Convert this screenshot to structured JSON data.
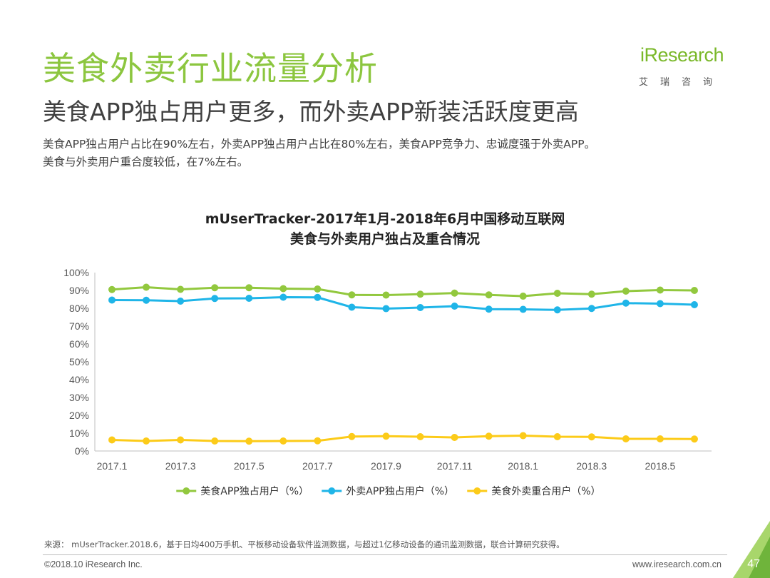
{
  "header": {
    "title": "美食外卖行业流量分析",
    "subtitle": "美食APP独占用户更多，而外卖APP新装活跃度更高",
    "description_lines": [
      "美食APP独占用户占比在90%左右，外卖APP独占用户占比在80%左右，美食APP竞争力、忠诚度强于外卖APP。",
      "美食与外卖用户重合度较低，在7%左右。"
    ]
  },
  "logo": {
    "text": "iResearch",
    "subtext": "艾瑞咨询"
  },
  "chart_data": {
    "type": "line",
    "title_lines": [
      "mUserTracker-2017年1月-2018年6月中国移动互联网",
      "美食与外卖用户独占及重合情况"
    ],
    "x": [
      "2017.1",
      "2017.2",
      "2017.3",
      "2017.4",
      "2017.5",
      "2017.6",
      "2017.7",
      "2017.8",
      "2017.9",
      "2017.10",
      "2017.11",
      "2017.12",
      "2018.1",
      "2018.2",
      "2018.3",
      "2018.4",
      "2018.5",
      "2018.6"
    ],
    "x_tick_labels": [
      "2017.1",
      "2017.3",
      "2017.5",
      "2017.7",
      "2017.9",
      "2017.11",
      "2018.1",
      "2018.3",
      "2018.5"
    ],
    "y_ticks": [
      "0%",
      "10%",
      "20%",
      "30%",
      "40%",
      "50%",
      "60%",
      "70%",
      "80%",
      "90%",
      "100%"
    ],
    "ylim": [
      0,
      100
    ],
    "grid": false,
    "legend_position": "bottom",
    "series": [
      {
        "name": "美食APP独占用户（%）",
        "color": "#92c83e",
        "values": [
          90.5,
          91.8,
          90.6,
          91.5,
          91.5,
          91.0,
          90.8,
          87.5,
          87.4,
          87.9,
          88.5,
          87.5,
          86.8,
          88.4,
          87.9,
          89.6,
          90.2,
          90.0
        ]
      },
      {
        "name": "外卖APP独占用户（%）",
        "color": "#1fb5e8",
        "values": [
          84.6,
          84.5,
          84.0,
          85.5,
          85.6,
          86.2,
          86.1,
          80.6,
          79.8,
          80.4,
          81.2,
          79.5,
          79.4,
          79.1,
          79.9,
          82.9,
          82.6,
          82.0
        ]
      },
      {
        "name": "美食外卖重合用户（%）",
        "color": "#fccb19",
        "values": [
          6.2,
          5.6,
          6.2,
          5.6,
          5.5,
          5.6,
          5.7,
          8.1,
          8.3,
          8.0,
          7.6,
          8.3,
          8.6,
          8.0,
          7.9,
          6.8,
          6.8,
          6.7
        ]
      }
    ]
  },
  "footer": {
    "source": "来源： mUserTracker.2018.6，基于日均400万手机、平板移动设备软件监测数据，与超过1亿移动设备的通讯监测数据，联合计算研究获得。",
    "copyright": "©2018.10 iResearch Inc.",
    "website": "www.iresearch.com.cn",
    "page_number": "47"
  },
  "colors": {
    "brand_green": "#8cc63f",
    "corner_dark": "#6fb43b",
    "corner_light": "#a8d66b"
  }
}
